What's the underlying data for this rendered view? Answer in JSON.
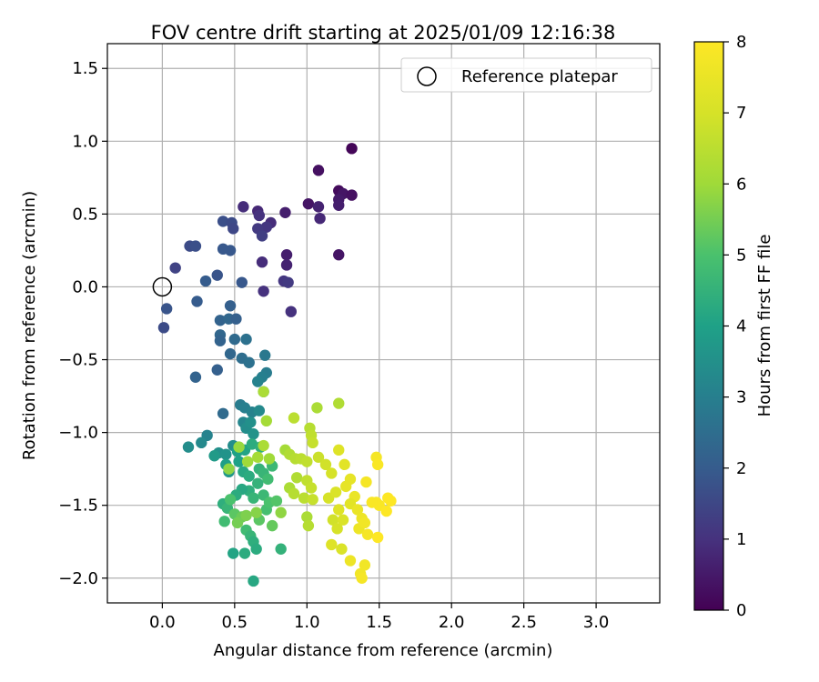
{
  "chart_data": {
    "type": "scatter",
    "title": "FOV centre drift starting at 2025/01/09 12:16:38",
    "xlabel": "Angular distance from reference (arcmin)",
    "ylabel": "Rotation from reference (arcmin)",
    "xlim": [
      -0.38,
      3.44
    ],
    "ylim": [
      -2.17,
      1.67
    ],
    "xticks": [
      "0.0",
      "0.5",
      "1.0",
      "1.5",
      "2.0",
      "2.5",
      "3.0"
    ],
    "yticks": [
      "−2.0",
      "−1.5",
      "−1.0",
      "−0.5",
      "0.0",
      "0.5",
      "1.0",
      "1.5"
    ],
    "grid": true,
    "legend": {
      "position": "top-right",
      "entries": [
        "Reference platepar"
      ]
    },
    "colorbar": {
      "label": "Hours from first FF file",
      "colormap": "viridis",
      "range": [
        0,
        8
      ],
      "ticks": [
        "0",
        "1",
        "2",
        "3",
        "4",
        "5",
        "6",
        "7",
        "8"
      ]
    },
    "reference_point": {
      "x": 0.0,
      "y": 0.0
    },
    "series": [
      {
        "values": [
          [
            1.31,
            0.95,
            0.1
          ],
          [
            1.08,
            0.8,
            0.3
          ],
          [
            1.22,
            0.66,
            0.2
          ],
          [
            1.25,
            0.64,
            0.4
          ],
          [
            1.31,
            0.63,
            0.3
          ],
          [
            1.22,
            0.6,
            0.5
          ],
          [
            1.22,
            0.56,
            0.6
          ],
          [
            1.01,
            0.57,
            0.4
          ],
          [
            1.08,
            0.55,
            0.7
          ],
          [
            1.09,
            0.47,
            0.8
          ],
          [
            0.85,
            0.51,
            0.6
          ],
          [
            0.75,
            0.44,
            0.9
          ],
          [
            0.66,
            0.52,
            0.8
          ],
          [
            0.67,
            0.49,
            1.0
          ],
          [
            0.72,
            0.41,
            1.1
          ],
          [
            0.66,
            0.4,
            1.2
          ],
          [
            0.69,
            0.35,
            1.3
          ],
          [
            0.56,
            0.55,
            0.9
          ],
          [
            0.86,
            0.22,
            0.6
          ],
          [
            1.22,
            0.22,
            0.4
          ],
          [
            0.86,
            0.15,
            0.7
          ],
          [
            0.69,
            0.17,
            0.9
          ],
          [
            0.84,
            0.04,
            1.1
          ],
          [
            0.87,
            0.03,
            1.2
          ],
          [
            0.7,
            -0.03,
            1.0
          ],
          [
            0.89,
            -0.17,
            1.0
          ],
          [
            0.42,
            0.45,
            1.7
          ],
          [
            0.48,
            0.44,
            1.6
          ],
          [
            0.49,
            0.4,
            1.5
          ],
          [
            0.47,
            0.25,
            1.9
          ],
          [
            0.42,
            0.26,
            1.9
          ],
          [
            0.19,
            0.28,
            1.6
          ],
          [
            0.23,
            0.28,
            1.7
          ],
          [
            0.09,
            0.13,
            1.4
          ],
          [
            0.38,
            0.08,
            1.8
          ],
          [
            0.3,
            0.04,
            2.0
          ],
          [
            0.55,
            0.03,
            1.9
          ],
          [
            0.24,
            -0.1,
            2.0
          ],
          [
            0.03,
            -0.15,
            1.8
          ],
          [
            0.01,
            -0.28,
            1.6
          ],
          [
            0.47,
            -0.13,
            2.1
          ],
          [
            0.4,
            -0.23,
            2.2
          ],
          [
            0.46,
            -0.22,
            2.3
          ],
          [
            0.51,
            -0.22,
            2.1
          ],
          [
            0.4,
            -0.33,
            2.3
          ],
          [
            0.4,
            -0.37,
            2.2
          ],
          [
            0.5,
            -0.36,
            2.4
          ],
          [
            0.58,
            -0.36,
            2.6
          ],
          [
            0.47,
            -0.46,
            2.3
          ],
          [
            0.38,
            -0.57,
            2.1
          ],
          [
            0.23,
            -0.62,
            2.2
          ],
          [
            0.55,
            -0.49,
            2.5
          ],
          [
            0.6,
            -0.52,
            2.6
          ],
          [
            0.71,
            -0.47,
            2.8
          ],
          [
            0.72,
            -0.59,
            2.9
          ],
          [
            0.69,
            -0.62,
            3.0
          ],
          [
            0.66,
            -0.65,
            3.1
          ],
          [
            0.7,
            -0.72,
            3.2
          ],
          [
            0.42,
            -0.87,
            2.4
          ],
          [
            0.54,
            -0.81,
            2.9
          ],
          [
            0.57,
            -0.83,
            3.0
          ],
          [
            0.62,
            -0.86,
            3.1
          ],
          [
            0.67,
            -0.85,
            3.3
          ],
          [
            0.56,
            -0.93,
            3.2
          ],
          [
            0.58,
            -0.97,
            3.4
          ],
          [
            0.61,
            -0.93,
            3.5
          ],
          [
            0.63,
            -1.01,
            3.6
          ],
          [
            0.31,
            -1.02,
            3.1
          ],
          [
            0.27,
            -1.07,
            3.3
          ],
          [
            0.18,
            -1.1,
            3.4
          ],
          [
            0.39,
            -1.14,
            3.5
          ],
          [
            0.44,
            -1.15,
            3.6
          ],
          [
            0.49,
            -1.09,
            3.4
          ],
          [
            0.36,
            -1.16,
            3.8
          ],
          [
            0.46,
            -1.27,
            3.7
          ],
          [
            0.44,
            -1.22,
            3.9
          ],
          [
            0.52,
            -1.13,
            4.0
          ],
          [
            0.57,
            -1.12,
            4.1
          ],
          [
            0.62,
            -1.08,
            4.3
          ],
          [
            0.68,
            -1.1,
            4.4
          ],
          [
            0.53,
            -1.2,
            4.0
          ],
          [
            0.56,
            -1.27,
            4.2
          ],
          [
            0.6,
            -1.3,
            4.3
          ],
          [
            0.67,
            -1.25,
            4.5
          ],
          [
            0.7,
            -1.28,
            4.6
          ],
          [
            0.76,
            -1.23,
            4.7
          ],
          [
            0.73,
            -1.32,
            4.8
          ],
          [
            0.66,
            -1.35,
            4.5
          ],
          [
            0.6,
            -1.4,
            4.4
          ],
          [
            0.55,
            -1.39,
            4.2
          ],
          [
            0.51,
            -1.43,
            4.3
          ],
          [
            0.63,
            -1.45,
            4.6
          ],
          [
            0.7,
            -1.43,
            4.7
          ],
          [
            0.72,
            -1.53,
            4.9
          ],
          [
            0.74,
            -1.48,
            5.0
          ],
          [
            0.79,
            -1.47,
            5.1
          ],
          [
            0.67,
            -1.6,
            5.2
          ],
          [
            0.76,
            -1.64,
            5.3
          ],
          [
            0.58,
            -1.67,
            4.8
          ],
          [
            0.61,
            -1.71,
            4.6
          ],
          [
            0.63,
            -1.75,
            4.4
          ],
          [
            0.65,
            -1.8,
            4.3
          ],
          [
            0.49,
            -1.83,
            4.1
          ],
          [
            0.57,
            -1.83,
            4.3
          ],
          [
            0.82,
            -1.8,
            4.5
          ],
          [
            0.63,
            -2.02,
            4.2
          ],
          [
            0.42,
            -1.49,
            4.4
          ],
          [
            0.45,
            -1.52,
            4.6
          ],
          [
            0.43,
            -1.61,
            4.8
          ],
          [
            0.47,
            -1.46,
            5.0
          ],
          [
            0.5,
            -1.56,
            5.2
          ],
          [
            0.55,
            -1.58,
            5.4
          ],
          [
            0.52,
            -1.62,
            5.5
          ],
          [
            0.58,
            -1.57,
            5.6
          ],
          [
            0.65,
            -1.55,
            5.7
          ],
          [
            0.46,
            -1.25,
            5.8
          ],
          [
            0.53,
            -1.1,
            5.9
          ],
          [
            0.59,
            -1.2,
            6.0
          ],
          [
            0.66,
            -1.17,
            6.1
          ],
          [
            0.7,
            -1.09,
            6.2
          ],
          [
            0.74,
            -1.18,
            6.0
          ],
          [
            0.72,
            -0.92,
            6.1
          ],
          [
            0.7,
            -0.72,
            6.2
          ],
          [
            0.85,
            -1.12,
            6.1
          ],
          [
            0.88,
            -1.15,
            6.3
          ],
          [
            0.92,
            -1.18,
            6.4
          ],
          [
            0.82,
            -1.55,
            5.8
          ],
          [
            0.88,
            -1.38,
            6.2
          ],
          [
            0.91,
            -1.42,
            6.4
          ],
          [
            0.93,
            -1.31,
            6.3
          ],
          [
            0.96,
            -1.18,
            6.5
          ],
          [
            1.0,
            -1.2,
            6.6
          ],
          [
            1.02,
            -0.97,
            6.4
          ],
          [
            1.03,
            -1.02,
            6.6
          ],
          [
            1.04,
            -1.07,
            6.7
          ],
          [
            0.91,
            -0.9,
            6.5
          ],
          [
            1.07,
            -0.83,
            6.2
          ],
          [
            1.22,
            -0.8,
            6.3
          ],
          [
            1.0,
            -1.33,
            6.6
          ],
          [
            1.03,
            -1.38,
            6.7
          ],
          [
            0.98,
            -1.45,
            6.5
          ],
          [
            1.04,
            -1.46,
            6.7
          ],
          [
            1.0,
            -1.58,
            6.2
          ],
          [
            1.01,
            -1.64,
            6.4
          ],
          [
            1.08,
            -1.17,
            6.8
          ],
          [
            1.13,
            -1.22,
            6.9
          ],
          [
            1.17,
            -1.28,
            7.0
          ],
          [
            1.15,
            -1.45,
            7.0
          ],
          [
            1.2,
            -1.41,
            7.1
          ],
          [
            1.22,
            -1.53,
            7.2
          ],
          [
            1.18,
            -1.6,
            6.9
          ],
          [
            1.21,
            -1.66,
            7.0
          ],
          [
            1.25,
            -1.6,
            7.1
          ],
          [
            1.17,
            -1.77,
            7.2
          ],
          [
            1.24,
            -1.8,
            7.1
          ],
          [
            1.22,
            -1.12,
            7.2
          ],
          [
            1.26,
            -1.22,
            7.3
          ],
          [
            1.3,
            -1.32,
            7.4
          ],
          [
            1.33,
            -1.44,
            7.5
          ],
          [
            1.3,
            -1.49,
            7.3
          ],
          [
            1.27,
            -1.37,
            7.4
          ],
          [
            1.35,
            -1.53,
            7.5
          ],
          [
            1.38,
            -1.59,
            7.6
          ],
          [
            1.36,
            -1.66,
            7.6
          ],
          [
            1.4,
            -1.62,
            7.7
          ],
          [
            1.42,
            -1.7,
            7.8
          ],
          [
            1.3,
            -1.88,
            7.6
          ],
          [
            1.37,
            -1.97,
            7.7
          ],
          [
            1.38,
            -2.0,
            7.8
          ],
          [
            1.4,
            -1.91,
            7.7
          ],
          [
            1.41,
            -1.34,
            7.8
          ],
          [
            1.48,
            -1.17,
            7.8
          ],
          [
            1.49,
            -1.22,
            7.9
          ],
          [
            1.48,
            -1.48,
            7.9
          ],
          [
            1.5,
            -1.5,
            7.9
          ],
          [
            1.56,
            -1.45,
            8.0
          ],
          [
            1.58,
            -1.47,
            8.0
          ],
          [
            1.55,
            -1.54,
            8.0
          ],
          [
            1.49,
            -1.72,
            8.0
          ],
          [
            1.45,
            -1.48,
            7.9
          ]
        ]
      }
    ]
  }
}
